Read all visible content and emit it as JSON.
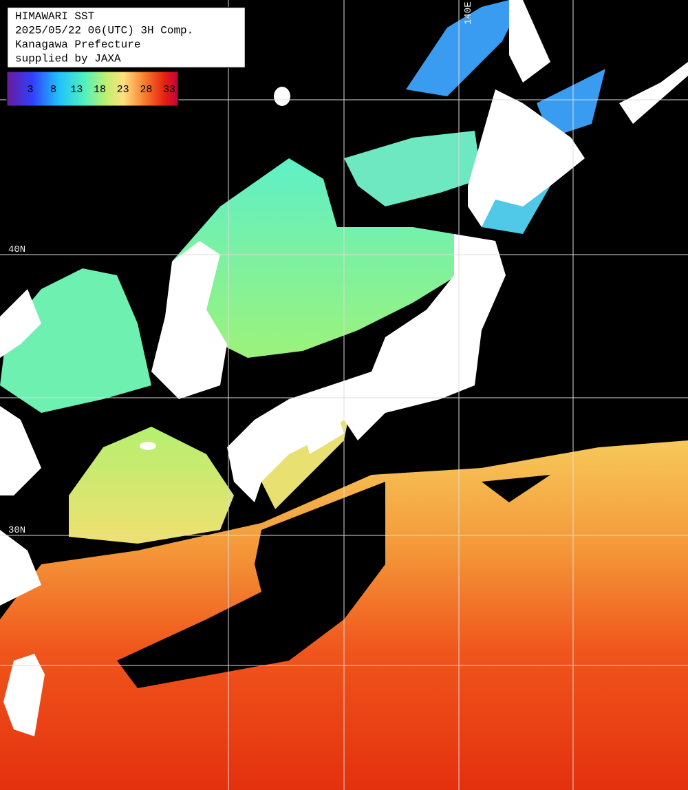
{
  "header": {
    "lines": [
      "HIMAWARI SST",
      "2025/05/22 06(UTC) 3H Comp.",
      "Kanagawa Prefecture",
      "supplied by JAXA"
    ]
  },
  "colorbar": {
    "labels": [
      3,
      8,
      13,
      18,
      23,
      28,
      33
    ]
  },
  "grid_labels": {
    "latitudes": [
      "40N",
      "30N"
    ],
    "longitudes": [
      "140E"
    ]
  }
}
